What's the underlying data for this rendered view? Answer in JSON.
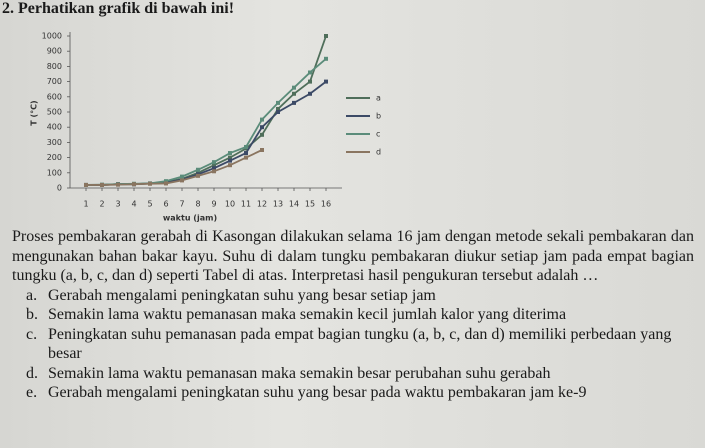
{
  "question": {
    "number": "2.",
    "prompt": "Perhatikan grafik di bawah ini!"
  },
  "chart_data": {
    "type": "line",
    "x_label": "waktu (jam)",
    "y_label": "T (°C)",
    "x": [
      1,
      2,
      3,
      4,
      5,
      6,
      7,
      8,
      9,
      10,
      11,
      12,
      13,
      14,
      15,
      16
    ],
    "series": [
      {
        "name": "a",
        "color": "#4f6e5a",
        "values": [
          20,
          20,
          25,
          25,
          30,
          40,
          60,
          100,
          150,
          200,
          260,
          350,
          520,
          620,
          700,
          1000
        ]
      },
      {
        "name": "b",
        "color": "#3c4a66",
        "values": [
          20,
          20,
          25,
          25,
          30,
          35,
          55,
          90,
          130,
          180,
          230,
          400,
          500,
          560,
          620,
          700
        ]
      },
      {
        "name": "c",
        "color": "#5b8c7a",
        "values": [
          20,
          22,
          25,
          28,
          30,
          45,
          75,
          120,
          170,
          230,
          270,
          450,
          560,
          660,
          760,
          850
        ]
      },
      {
        "name": "d",
        "color": "#8a7560",
        "values": [
          20,
          20,
          22,
          25,
          28,
          30,
          50,
          80,
          110,
          150,
          200,
          250,
          null,
          null,
          null,
          null
        ]
      }
    ],
    "xlim": [
      0,
      17
    ],
    "ylim": [
      0,
      1000
    ],
    "xticks": [
      1,
      2,
      3,
      4,
      5,
      6,
      7,
      8,
      9,
      10,
      11,
      12,
      13,
      14,
      15,
      16
    ],
    "yticks": [
      0,
      100,
      200,
      300,
      400,
      500,
      600,
      700,
      800,
      900,
      1000
    ],
    "grid": false
  },
  "paragraph": "Proses pembakaran gerabah di Kasongan dilakukan selama 16 jam dengan metode sekali pembakaran dan mengunakan bahan bakar kayu. Suhu di dalam tungku pembakaran diukur setiap jam pada empat bagian tungku (a, b, c, dan d) seperti Tabel di atas. Interpretasi hasil pengukuran tersebut adalah …",
  "options": [
    {
      "letter": "a.",
      "text": "Gerabah mengalami peningkatan suhu yang besar setiap jam"
    },
    {
      "letter": "b.",
      "text": "Semakin lama waktu pemanasan maka semakin kecil jumlah kalor yang diterima"
    },
    {
      "letter": "c.",
      "text": "Peningkatan suhu pemanasan pada empat bagian tungku (a, b, c, dan d) memiliki perbedaan yang besar"
    },
    {
      "letter": "d.",
      "text": "Semakin lama waktu pemanasan maka semakin besar perubahan suhu gerabah"
    },
    {
      "letter": "e.",
      "text": "Gerabah mengalami peningkatan suhu yang besar pada waktu pembakaran jam ke-9"
    }
  ]
}
